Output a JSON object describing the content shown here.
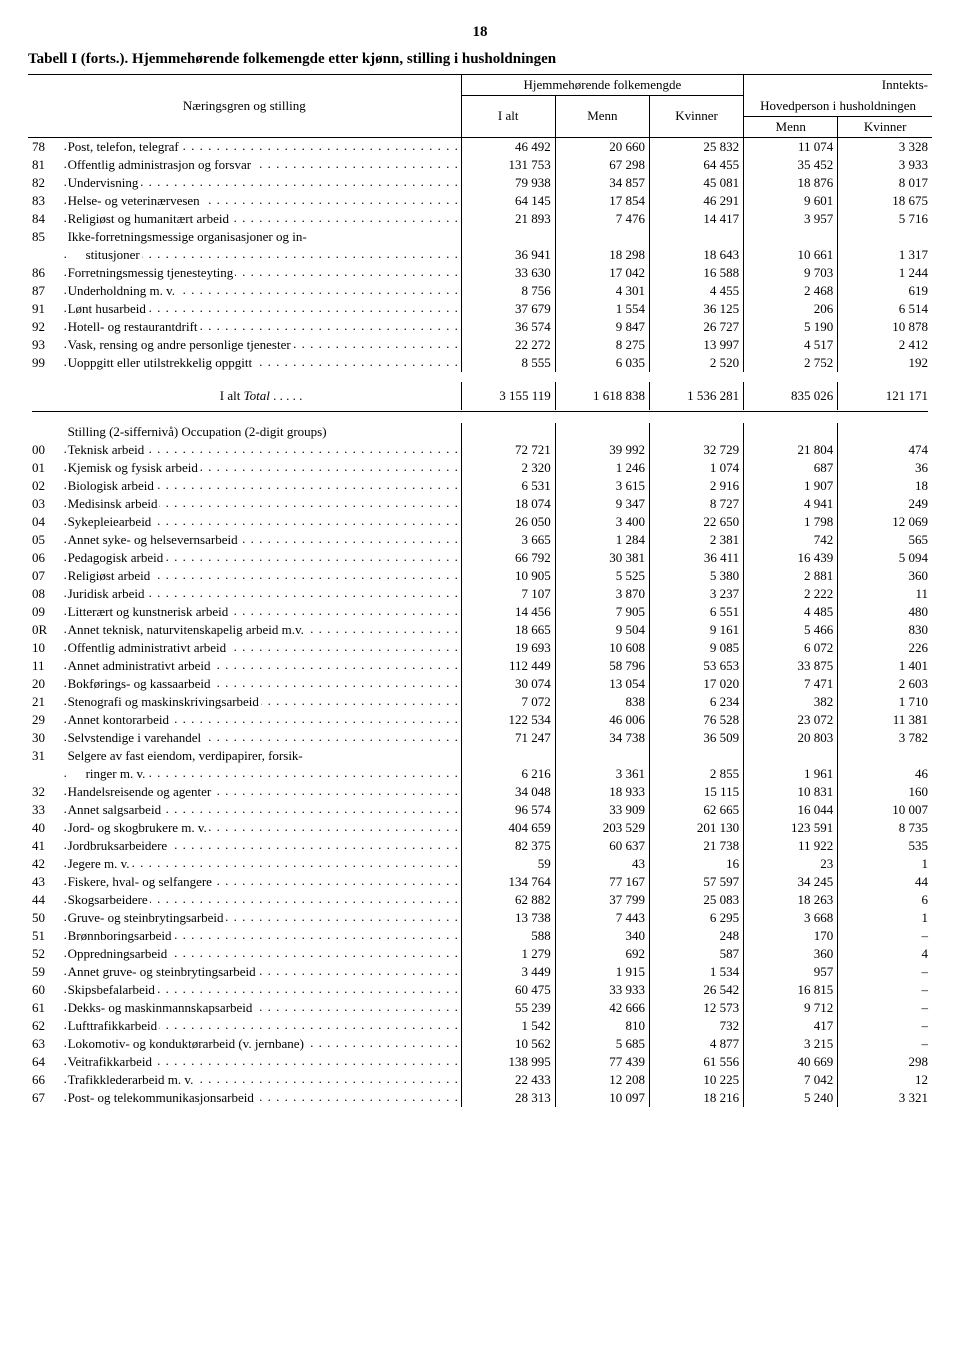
{
  "page_number": "18",
  "title": "Tabell I (forts.). Hjemmehørende folkemengde etter kjønn, stilling i husholdningen",
  "header": {
    "left_label": "Næringsgren og stilling",
    "group1": "Hjemmehørende folkemengde",
    "group2": "Inntekts-",
    "sub_group2": "Hovedperson i husholdningen",
    "ialt": "I alt",
    "menn": "Menn",
    "kvinner": "Kvinner"
  },
  "total_row": {
    "label": "I alt",
    "label_italic": "Total",
    "v": [
      "3 155 119",
      "1 618 838",
      "1 536 281",
      "835 026",
      "121 171"
    ]
  },
  "section2_heading": "Stilling (2-siffernivå) Occupation (2-digit groups)",
  "rows1": [
    {
      "c": "78",
      "l": "Post, telefon, telegraf",
      "v": [
        "46 492",
        "20 660",
        "25 832",
        "11 074",
        "3 328"
      ]
    },
    {
      "c": "81",
      "l": "Offentlig administrasjon og forsvar",
      "v": [
        "131 753",
        "67 298",
        "64 455",
        "35 452",
        "3 933"
      ]
    },
    {
      "c": "82",
      "l": "Undervisning",
      "v": [
        "79 938",
        "34 857",
        "45 081",
        "18 876",
        "8 017"
      ]
    },
    {
      "c": "83",
      "l": "Helse- og veterinærvesen",
      "v": [
        "64 145",
        "17 854",
        "46 291",
        "9 601",
        "18 675"
      ]
    },
    {
      "c": "84",
      "l": "Religiøst og humanitært arbeid",
      "v": [
        "21 893",
        "7 476",
        "14 417",
        "3 957",
        "5 716"
      ]
    },
    {
      "c": "85",
      "l": "Ikke-forretningsmessige organisasjoner og in-",
      "nodots": true,
      "wrap": true
    },
    {
      "c": "",
      "l": "stitusjoner",
      "indent": true,
      "v": [
        "36 941",
        "18 298",
        "18 643",
        "10 661",
        "1 317"
      ]
    },
    {
      "c": "86",
      "l": "Forretningsmessig tjenesteyting",
      "v": [
        "33 630",
        "17 042",
        "16 588",
        "9 703",
        "1 244"
      ]
    },
    {
      "c": "87",
      "l": "Underholdning m. v.",
      "v": [
        "8 756",
        "4 301",
        "4 455",
        "2 468",
        "619"
      ]
    },
    {
      "c": "91",
      "l": "Lønt husarbeid",
      "v": [
        "37 679",
        "1 554",
        "36 125",
        "206",
        "6 514"
      ]
    },
    {
      "c": "92",
      "l": "Hotell- og restaurantdrift",
      "v": [
        "36 574",
        "9 847",
        "26 727",
        "5 190",
        "10 878"
      ]
    },
    {
      "c": "93",
      "l": "Vask, rensing og andre personlige tjenester",
      "v": [
        "22 272",
        "8 275",
        "13 997",
        "4 517",
        "2 412"
      ]
    },
    {
      "c": "99",
      "l": "Uoppgitt eller utilstrekkelig oppgitt",
      "v": [
        "8 555",
        "6 035",
        "2 520",
        "2 752",
        "192"
      ]
    }
  ],
  "rows2": [
    {
      "c": "00",
      "l": "Teknisk arbeid",
      "v": [
        "72 721",
        "39 992",
        "32 729",
        "21 804",
        "474"
      ]
    },
    {
      "c": "01",
      "l": "Kjemisk og fysisk arbeid",
      "v": [
        "2 320",
        "1 246",
        "1 074",
        "687",
        "36"
      ]
    },
    {
      "c": "02",
      "l": "Biologisk arbeid",
      "v": [
        "6 531",
        "3 615",
        "2 916",
        "1 907",
        "18"
      ]
    },
    {
      "c": "03",
      "l": "Medisinsk arbeid",
      "v": [
        "18 074",
        "9 347",
        "8 727",
        "4 941",
        "249"
      ]
    },
    {
      "c": "04",
      "l": "Sykepleiearbeid",
      "v": [
        "26 050",
        "3 400",
        "22 650",
        "1 798",
        "12 069"
      ]
    },
    {
      "c": "05",
      "l": "Annet syke- og helsevernsarbeid",
      "v": [
        "3 665",
        "1 284",
        "2 381",
        "742",
        "565"
      ]
    },
    {
      "c": "06",
      "l": "Pedagogisk arbeid",
      "v": [
        "66 792",
        "30 381",
        "36 411",
        "16 439",
        "5 094"
      ]
    },
    {
      "c": "07",
      "l": "Religiøst arbeid",
      "v": [
        "10 905",
        "5 525",
        "5 380",
        "2 881",
        "360"
      ]
    },
    {
      "c": "08",
      "l": "Juridisk arbeid",
      "v": [
        "7 107",
        "3 870",
        "3 237",
        "2 222",
        "11"
      ]
    },
    {
      "c": "09",
      "l": "Litterært og kunstnerisk arbeid",
      "v": [
        "14 456",
        "7 905",
        "6 551",
        "4 485",
        "480"
      ]
    },
    {
      "c": "0R",
      "l": "Annet teknisk, naturvitenskapelig arbeid m.v.",
      "v": [
        "18 665",
        "9 504",
        "9 161",
        "5 466",
        "830"
      ]
    },
    {
      "c": "10",
      "l": "Offentlig administrativt arbeid",
      "v": [
        "19 693",
        "10 608",
        "9 085",
        "6 072",
        "226"
      ]
    },
    {
      "c": "11",
      "l": "Annet administrativt arbeid",
      "v": [
        "112 449",
        "58 796",
        "53 653",
        "33 875",
        "1 401"
      ]
    },
    {
      "c": "20",
      "l": "Bokførings- og kassaarbeid",
      "v": [
        "30 074",
        "13 054",
        "17 020",
        "7 471",
        "2 603"
      ]
    },
    {
      "c": "21",
      "l": "Stenografi og maskinskrivingsarbeid",
      "v": [
        "7 072",
        "838",
        "6 234",
        "382",
        "1 710"
      ]
    },
    {
      "c": "29",
      "l": "Annet kontorarbeid",
      "v": [
        "122 534",
        "46 006",
        "76 528",
        "23 072",
        "11 381"
      ]
    },
    {
      "c": "30",
      "l": "Selvstendige i varehandel",
      "v": [
        "71 247",
        "34 738",
        "36 509",
        "20 803",
        "3 782"
      ]
    },
    {
      "c": "31",
      "l": "Selgere av fast eiendom, verdipapirer, forsik-",
      "nodots": true,
      "wrap": true
    },
    {
      "c": "",
      "l": "ringer m. v.",
      "indent": true,
      "v": [
        "6 216",
        "3 361",
        "2 855",
        "1 961",
        "46"
      ]
    },
    {
      "c": "32",
      "l": "Handelsreisende og agenter",
      "v": [
        "34 048",
        "18 933",
        "15 115",
        "10 831",
        "160"
      ]
    },
    {
      "c": "33",
      "l": "Annet salgsarbeid",
      "v": [
        "96 574",
        "33 909",
        "62 665",
        "16 044",
        "10 007"
      ]
    },
    {
      "c": "40",
      "l": "Jord- og skogbrukere m. v.",
      "v": [
        "404 659",
        "203 529",
        "201 130",
        "123 591",
        "8 735"
      ]
    },
    {
      "c": "41",
      "l": "Jordbruksarbeidere",
      "v": [
        "82 375",
        "60 637",
        "21 738",
        "11 922",
        "535"
      ]
    },
    {
      "c": "42",
      "l": "Jegere m. v.",
      "v": [
        "59",
        "43",
        "16",
        "23",
        "1"
      ]
    },
    {
      "c": "43",
      "l": "Fiskere, hval- og selfangere",
      "v": [
        "134 764",
        "77 167",
        "57 597",
        "34 245",
        "44"
      ]
    },
    {
      "c": "44",
      "l": "Skogsarbeidere",
      "v": [
        "62 882",
        "37 799",
        "25 083",
        "18 263",
        "6"
      ]
    },
    {
      "c": "50",
      "l": "Gruve- og steinbrytingsarbeid",
      "v": [
        "13 738",
        "7 443",
        "6 295",
        "3 668",
        "1"
      ]
    },
    {
      "c": "51",
      "l": "Brønnboringsarbeid",
      "v": [
        "588",
        "340",
        "248",
        "170",
        "–"
      ]
    },
    {
      "c": "52",
      "l": "Oppredningsarbeid",
      "v": [
        "1 279",
        "692",
        "587",
        "360",
        "4"
      ]
    },
    {
      "c": "59",
      "l": "Annet gruve- og steinbrytingsarbeid",
      "v": [
        "3 449",
        "1 915",
        "1 534",
        "957",
        "–"
      ]
    },
    {
      "c": "60",
      "l": "Skipsbefalarbeid",
      "v": [
        "60 475",
        "33 933",
        "26 542",
        "16 815",
        "–"
      ]
    },
    {
      "c": "61",
      "l": "Dekks- og maskinmannskapsarbeid",
      "v": [
        "55 239",
        "42 666",
        "12 573",
        "9 712",
        "–"
      ]
    },
    {
      "c": "62",
      "l": "Lufttrafikkarbeid",
      "v": [
        "1 542",
        "810",
        "732",
        "417",
        "–"
      ]
    },
    {
      "c": "63",
      "l": "Lokomotiv- og konduktørarbeid (v. jernbane)",
      "v": [
        "10 562",
        "5 685",
        "4 877",
        "3 215",
        "–"
      ]
    },
    {
      "c": "64",
      "l": "Veitrafikkarbeid",
      "v": [
        "138 995",
        "77 439",
        "61 556",
        "40 669",
        "298"
      ]
    },
    {
      "c": "66",
      "l": "Trafikklederarbeid m. v.",
      "v": [
        "22 433",
        "12 208",
        "10 225",
        "7 042",
        "12"
      ]
    },
    {
      "c": "67",
      "l": "Post- og telekommunikasjonsarbeid",
      "v": [
        "28 313",
        "10 097",
        "18 216",
        "5 240",
        "3 321"
      ]
    }
  ],
  "colwidths": {
    "code": 34,
    "label": 380,
    "n1": 90,
    "n2": 90,
    "n3": 90,
    "n4": 90,
    "n5": 90
  }
}
